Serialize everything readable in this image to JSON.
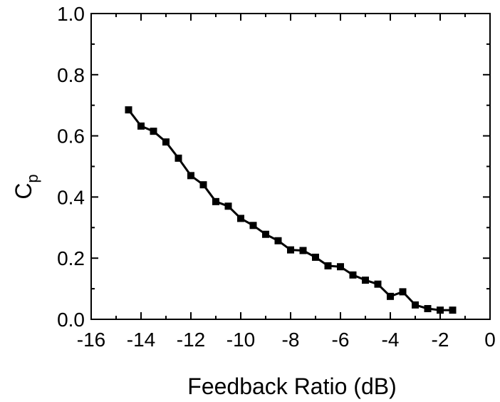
{
  "chart_data": {
    "type": "line",
    "title": "",
    "xlabel": "Feedback Ratio (dB)",
    "ylabel_main": "C",
    "ylabel_sub": "p",
    "xlim": [
      -16,
      0
    ],
    "ylim": [
      0.0,
      1.0
    ],
    "xticks": [
      "-16",
      "-14",
      "-12",
      "-10",
      "-8",
      "-6",
      "-4",
      "-2",
      "0"
    ],
    "yticks": [
      "0.0",
      "0.2",
      "0.4",
      "0.6",
      "0.8",
      "1.0"
    ],
    "grid": false,
    "marker": "square",
    "series": [
      {
        "x": [
          -14.5,
          -14.0,
          -13.5,
          -13.0,
          -12.5,
          -12.0,
          -11.5,
          -11.0,
          -10.5,
          -10.0,
          -9.5,
          -9.0,
          -8.5,
          -8.0,
          -7.5,
          -7.0,
          -6.5,
          -6.0,
          -5.5,
          -5.0,
          -4.5,
          -4.0,
          -3.5,
          -3.0,
          -2.5,
          -2.0,
          -1.5
        ],
        "y": [
          0.685,
          0.632,
          0.615,
          0.58,
          0.527,
          0.47,
          0.44,
          0.385,
          0.37,
          0.33,
          0.307,
          0.278,
          0.257,
          0.227,
          0.225,
          0.203,
          0.175,
          0.172,
          0.145,
          0.128,
          0.115,
          0.075,
          0.09,
          0.047,
          0.035,
          0.03,
          0.03
        ]
      }
    ]
  }
}
